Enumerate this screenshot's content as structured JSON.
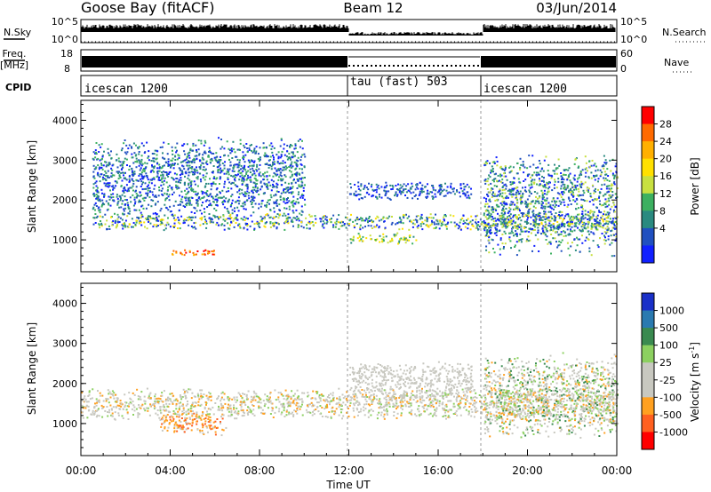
{
  "header": {
    "station": "Goose Bay (fitACF)",
    "beam": "Beam 12",
    "date": "03/Jun/2014"
  },
  "strip_labels": {
    "nsky": "N.Sky",
    "nsky_ticks": [
      "10^5",
      "10^0"
    ],
    "nsearch": "N.Search",
    "nsearch_ticks": [
      "10^5",
      "10^0"
    ],
    "freq_top": "Freq.",
    "freq_bottom": "[MHz]",
    "freq_ticks": [
      "18",
      "8"
    ],
    "nave": "Nave",
    "nave_ticks": [
      "60",
      "0"
    ],
    "cpid": "CPID",
    "cpid_segments": [
      "icescan 1200",
      "tau (fast) 503",
      "icescan 1200"
    ]
  },
  "chart_data": [
    {
      "type": "heatmap",
      "panel": "power",
      "title": "",
      "xlabel": "",
      "ylabel": "Slant Range [km]",
      "ylim": [
        200,
        4500
      ],
      "y_ticks": [
        "1000",
        "2000",
        "3000",
        "4000"
      ],
      "xlim": [
        "00:00",
        "24:00"
      ],
      "colorbar": {
        "label": "Power [dB]",
        "ticks": [
          "28",
          "24",
          "20",
          "16",
          "12",
          "8",
          "4"
        ],
        "colors": [
          "#ff0000",
          "#ff6a00",
          "#ffb000",
          "#ffe000",
          "#c8e040",
          "#3cb060",
          "#2a8a80",
          "#2050c0",
          "#1020ff"
        ]
      },
      "features": [
        {
          "t_start": 0.5,
          "t_end": 24,
          "range_km": [
            1250,
            1700
          ],
          "power_db": "8-20"
        },
        {
          "t_start": 0.5,
          "t_end": 10,
          "range_km": [
            1500,
            3600
          ],
          "power_db": "4-16"
        },
        {
          "t_start": 4,
          "t_end": 6,
          "range_km": [
            600,
            800
          ],
          "power_db": "24-28"
        },
        {
          "t_start": 12,
          "t_end": 17.5,
          "range_km": [
            2000,
            2500
          ],
          "power_db": "4-12"
        },
        {
          "t_start": 12,
          "t_end": 15,
          "range_km": [
            900,
            1200
          ],
          "power_db": "8-16"
        },
        {
          "t_start": 18,
          "t_end": 24,
          "range_km": [
            600,
            3200
          ],
          "power_db": "4-20"
        }
      ]
    },
    {
      "type": "heatmap",
      "panel": "velocity",
      "title": "",
      "xlabel": "Time UT",
      "ylabel": "Slant Range [km]",
      "ylim": [
        200,
        4500
      ],
      "y_ticks": [
        "1000",
        "2000",
        "3000",
        "4000"
      ],
      "xlim": [
        "00:00",
        "24:00"
      ],
      "x_ticks": [
        "00:00",
        "04:00",
        "08:00",
        "12:00",
        "16:00",
        "20:00",
        "00:00"
      ],
      "colorbar": {
        "label": "Velocity [m s",
        "label_sup": "-1",
        "label_close": "]",
        "ticks": [
          "1000",
          "500",
          "100",
          "25",
          "-25",
          "-100",
          "-500",
          "-1000"
        ],
        "colors": [
          "#1a30c8",
          "#2a7ab0",
          "#3a8a50",
          "#8cd060",
          "#c8c8c0",
          "#c8c8c0",
          "#ffa020",
          "#ff6020",
          "#ff0000"
        ]
      },
      "features": [
        {
          "t_start": 3.5,
          "t_end": 6.5,
          "range_km": [
            700,
            1300
          ],
          "velocity_ms": "-100 to -500"
        },
        {
          "t_start": 0,
          "t_end": 24,
          "range_km": [
            1100,
            1900
          ],
          "velocity_ms": "-25 to 25"
        },
        {
          "t_start": 12,
          "t_end": 17.5,
          "range_km": [
            1500,
            2600
          ],
          "velocity_ms": "-25 to 25"
        },
        {
          "t_start": 18,
          "t_end": 24,
          "range_km": [
            600,
            2800
          ],
          "velocity_ms": "-100 to 100"
        }
      ]
    }
  ]
}
